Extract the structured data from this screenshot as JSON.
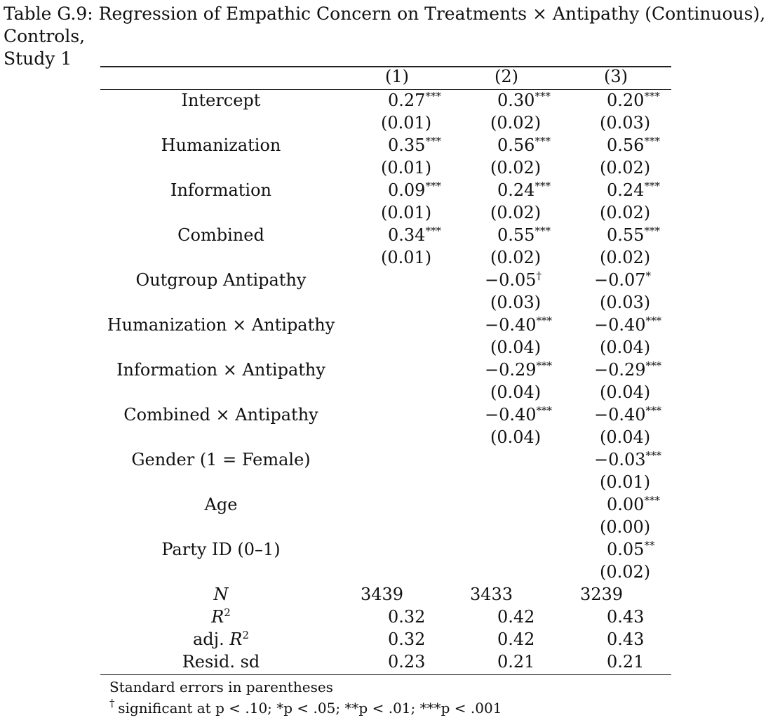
{
  "caption": {
    "line1": "Table G.9: Regression of Empathic Concern on Treatments × Antipathy (Continuous), Controls,",
    "line2": "Study 1"
  },
  "columns": [
    "(1)",
    "(2)",
    "(3)"
  ],
  "rows": [
    {
      "label": "Intercept",
      "c1": {
        "est": "0.27",
        "stars": "***",
        "se": "(0.01)"
      },
      "c2": {
        "est": "0.30",
        "stars": "***",
        "se": "(0.02)"
      },
      "c3": {
        "est": "0.20",
        "stars": "***",
        "se": "(0.03)"
      }
    },
    {
      "label": "Humanization",
      "c1": {
        "est": "0.35",
        "stars": "***",
        "se": "(0.01)"
      },
      "c2": {
        "est": "0.56",
        "stars": "***",
        "se": "(0.02)"
      },
      "c3": {
        "est": "0.56",
        "stars": "***",
        "se": "(0.02)"
      }
    },
    {
      "label": "Information",
      "c1": {
        "est": "0.09",
        "stars": "***",
        "se": "(0.01)"
      },
      "c2": {
        "est": "0.24",
        "stars": "***",
        "se": "(0.02)"
      },
      "c3": {
        "est": "0.24",
        "stars": "***",
        "se": "(0.02)"
      }
    },
    {
      "label": "Combined",
      "c1": {
        "est": "0.34",
        "stars": "***",
        "se": "(0.01)"
      },
      "c2": {
        "est": "0.55",
        "stars": "***",
        "se": "(0.02)"
      },
      "c3": {
        "est": "0.55",
        "stars": "***",
        "se": "(0.02)"
      }
    },
    {
      "label": "Outgroup Antipathy",
      "c1": null,
      "c2": {
        "est": "−0.05",
        "stars": "†",
        "se": "(0.03)"
      },
      "c3": {
        "est": "−0.07",
        "stars": "*",
        "se": "(0.03)"
      }
    },
    {
      "label": "Humanization × Antipathy",
      "c1": null,
      "c2": {
        "est": "−0.40",
        "stars": "***",
        "se": "(0.04)"
      },
      "c3": {
        "est": "−0.40",
        "stars": "***",
        "se": "(0.04)"
      }
    },
    {
      "label": "Information × Antipathy",
      "c1": null,
      "c2": {
        "est": "−0.29",
        "stars": "***",
        "se": "(0.04)"
      },
      "c3": {
        "est": "−0.29",
        "stars": "***",
        "se": "(0.04)"
      }
    },
    {
      "label": "Combined × Antipathy",
      "c1": null,
      "c2": {
        "est": "−0.40",
        "stars": "***",
        "se": "(0.04)"
      },
      "c3": {
        "est": "−0.40",
        "stars": "***",
        "se": "(0.04)"
      }
    },
    {
      "label": "Gender (1 = Female)",
      "c1": null,
      "c2": null,
      "c3": {
        "est": "−0.03",
        "stars": "***",
        "se": "(0.01)"
      }
    },
    {
      "label": "Age",
      "c1": null,
      "c2": null,
      "c3": {
        "est": "0.00",
        "stars": "***",
        "se": "(0.00)"
      }
    },
    {
      "label": "Party ID (0–1)",
      "c1": null,
      "c2": null,
      "c3": {
        "est": "0.05",
        "stars": "**",
        "se": "(0.02)"
      }
    }
  ],
  "stats": [
    {
      "label": "N",
      "sup": "",
      "prefix": "",
      "values": [
        "3439",
        "3433",
        "3239"
      ]
    },
    {
      "label": "R",
      "sup": "2",
      "prefix": "",
      "values": [
        "0.32",
        "0.42",
        "0.43"
      ]
    },
    {
      "label": "R",
      "sup": "2",
      "prefix": "adj. ",
      "values": [
        "0.32",
        "0.42",
        "0.43"
      ]
    },
    {
      "label": "Resid. sd",
      "sup": "",
      "prefix": "",
      "values": [
        "0.23",
        "0.21",
        "0.21"
      ]
    }
  ],
  "notes": {
    "line1": "Standard errors in parentheses",
    "line2": "significant at p < .10; *p < .05; **p < .01; ***p < .001"
  }
}
